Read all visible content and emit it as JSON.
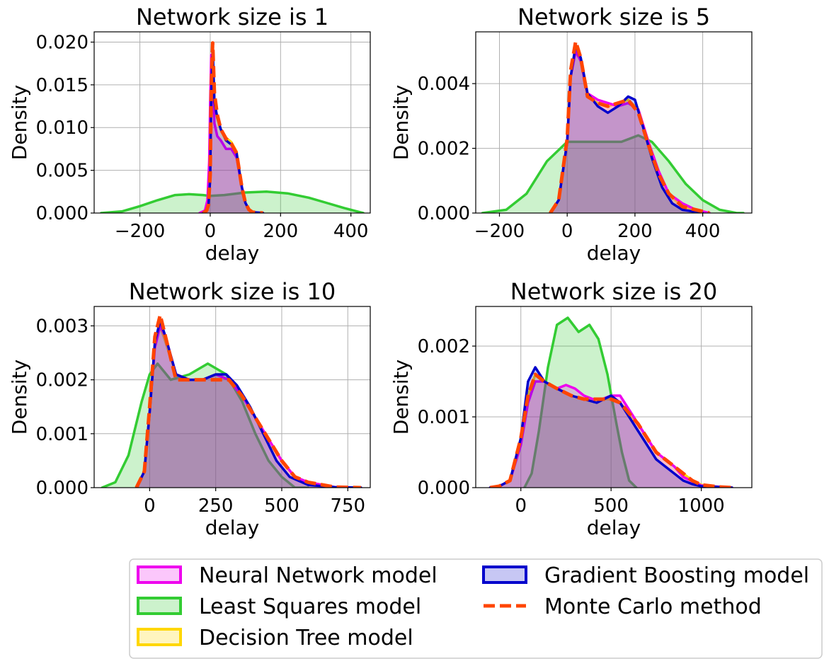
{
  "chart_data": [
    {
      "type": "area",
      "title": "Network size is 1",
      "xlabel": "delay",
      "ylabel": "Density",
      "xlim": [
        -330,
        455
      ],
      "ylim": [
        0,
        0.0212
      ],
      "xticks": [
        -200,
        0,
        200,
        400
      ],
      "yticks": [
        0.0,
        0.005,
        0.01,
        0.015,
        0.02
      ],
      "ytick_labels": [
        "0.000",
        "0.005",
        "0.010",
        "0.015",
        "0.020"
      ],
      "grid": true,
      "series": [
        {
          "name": "Least Squares model",
          "key": "ls",
          "x": [
            -310,
            -250,
            -200,
            -150,
            -100,
            -60,
            -20,
            0,
            40,
            100,
            160,
            220,
            280,
            330,
            380,
            435
          ],
          "y": [
            0,
            0.0002,
            0.0008,
            0.0015,
            0.0021,
            0.0022,
            0.0021,
            0.002,
            0.0021,
            0.0024,
            0.0025,
            0.0023,
            0.0018,
            0.0012,
            0.0006,
            0
          ]
        },
        {
          "name": "Decision Tree model",
          "key": "dt",
          "x": [
            -20,
            -10,
            -5,
            0,
            3,
            7,
            12,
            20,
            30,
            45,
            60,
            75,
            90,
            100,
            110,
            120,
            150
          ],
          "y": [
            0,
            0.0003,
            0.001,
            0.004,
            0.0135,
            0.019,
            0.013,
            0.0111,
            0.0098,
            0.0088,
            0.0083,
            0.0072,
            0.003,
            0.0012,
            0.0004,
            0.0001,
            0
          ]
        },
        {
          "name": "Gradient Boosting model",
          "key": "gb",
          "x": [
            -20,
            -10,
            -5,
            0,
            3,
            7,
            12,
            20,
            30,
            45,
            60,
            75,
            90,
            100,
            110,
            120,
            150
          ],
          "y": [
            0,
            0.0003,
            0.001,
            0.004,
            0.014,
            0.0195,
            0.013,
            0.0112,
            0.0098,
            0.0085,
            0.008,
            0.007,
            0.003,
            0.0012,
            0.0004,
            0.0001,
            0
          ]
        },
        {
          "name": "Neural Network model",
          "key": "nn",
          "x": [
            -30,
            -15,
            -8,
            -3,
            0,
            3,
            7,
            12,
            20,
            30,
            45,
            60,
            75,
            90,
            100,
            110,
            120,
            150
          ],
          "y": [
            0,
            0.0003,
            0.0015,
            0.006,
            0.013,
            0.0185,
            0.016,
            0.0105,
            0.009,
            0.0085,
            0.0075,
            0.0075,
            0.0065,
            0.003,
            0.0012,
            0.0004,
            0.0001,
            0
          ]
        },
        {
          "name": "Monte Carlo method",
          "key": "mc",
          "x": [
            -20,
            -10,
            -5,
            0,
            3,
            7,
            12,
            20,
            30,
            45,
            60,
            75,
            90,
            100,
            110,
            120,
            150
          ],
          "y": [
            0,
            0.0003,
            0.001,
            0.0045,
            0.0145,
            0.0199,
            0.014,
            0.0115,
            0.0098,
            0.0087,
            0.0081,
            0.007,
            0.003,
            0.0012,
            0.0004,
            0.0001,
            0
          ]
        }
      ]
    },
    {
      "type": "area",
      "title": "Network size is 5",
      "xlabel": "delay",
      "ylabel": "Density",
      "xlim": [
        -270,
        545
      ],
      "ylim": [
        0,
        0.0056
      ],
      "xticks": [
        -200,
        0,
        200,
        400
      ],
      "yticks": [
        0.0,
        0.002,
        0.004
      ],
      "ytick_labels": [
        "0.000",
        "0.002",
        "0.004"
      ],
      "grid": true,
      "series": [
        {
          "name": "Least Squares model",
          "key": "ls",
          "x": [
            -250,
            -180,
            -120,
            -60,
            0,
            60,
            100,
            160,
            210,
            250,
            300,
            350,
            400,
            450,
            500,
            520
          ],
          "y": [
            0,
            0.0001,
            0.0006,
            0.0016,
            0.0022,
            0.0022,
            0.0022,
            0.0022,
            0.0024,
            0.0022,
            0.0016,
            0.0009,
            0.0004,
            0.0001,
            0,
            0
          ]
        },
        {
          "name": "Decision Tree model",
          "key": "dt",
          "x": [
            -50,
            -25,
            0,
            10,
            25,
            40,
            60,
            90,
            120,
            150,
            180,
            210,
            240,
            270,
            300,
            340,
            380,
            420
          ],
          "y": [
            0,
            0.0004,
            0.0022,
            0.0042,
            0.0051,
            0.0047,
            0.0036,
            0.0034,
            0.0033,
            0.0034,
            0.0035,
            0.0032,
            0.0022,
            0.0012,
            0.0006,
            0.0002,
            0.0001,
            0
          ]
        },
        {
          "name": "Gradient Boosting model",
          "key": "gb",
          "x": [
            -50,
            -25,
            0,
            10,
            25,
            40,
            60,
            90,
            120,
            150,
            180,
            200,
            220,
            250,
            280,
            310,
            340,
            400
          ],
          "y": [
            0,
            0.0004,
            0.0022,
            0.0042,
            0.0052,
            0.0048,
            0.0037,
            0.0033,
            0.0031,
            0.0033,
            0.0036,
            0.0035,
            0.0028,
            0.0017,
            0.0008,
            0.0003,
            0.0001,
            0
          ]
        },
        {
          "name": "Neural Network model",
          "key": "nn",
          "x": [
            -50,
            -25,
            0,
            10,
            25,
            40,
            60,
            90,
            120,
            150,
            180,
            210,
            240,
            270,
            300,
            340,
            380,
            420
          ],
          "y": [
            0,
            0.0004,
            0.0022,
            0.0042,
            0.005,
            0.0047,
            0.0037,
            0.0035,
            0.0034,
            0.0033,
            0.0034,
            0.0032,
            0.0022,
            0.0013,
            0.0006,
            0.0003,
            0.0001,
            0
          ]
        },
        {
          "name": "Monte Carlo method",
          "key": "mc",
          "x": [
            -50,
            -25,
            0,
            10,
            25,
            40,
            60,
            90,
            120,
            150,
            180,
            210,
            240,
            270,
            300,
            340,
            380,
            420
          ],
          "y": [
            0,
            0.0004,
            0.0023,
            0.0044,
            0.0053,
            0.0048,
            0.0036,
            0.0034,
            0.0033,
            0.0034,
            0.0035,
            0.0031,
            0.0021,
            0.0012,
            0.0006,
            0.0002,
            0.0001,
            0
          ]
        }
      ]
    },
    {
      "type": "area",
      "title": "Network size is 10",
      "xlabel": "delay",
      "ylabel": "Density",
      "xlim": [
        -210,
        835
      ],
      "ylim": [
        0,
        0.00336
      ],
      "xticks": [
        0,
        250,
        500,
        750
      ],
      "yticks": [
        0.0,
        0.001,
        0.002,
        0.003
      ],
      "ytick_labels": [
        "0.000",
        "0.001",
        "0.002",
        "0.003"
      ],
      "grid": true,
      "series": [
        {
          "name": "Least Squares model",
          "key": "ls",
          "x": [
            -180,
            -130,
            -80,
            -30,
            0,
            30,
            80,
            150,
            220,
            290,
            350,
            400,
            450,
            500,
            550,
            600
          ],
          "y": [
            0,
            0.0001,
            0.0006,
            0.0016,
            0.0021,
            0.0023,
            0.002,
            0.0021,
            0.0023,
            0.0021,
            0.0016,
            0.001,
            0.0005,
            0.0002,
            0,
            0
          ]
        },
        {
          "name": "Decision Tree model",
          "key": "dt",
          "x": [
            -50,
            -20,
            0,
            20,
            40,
            60,
            100,
            150,
            200,
            250,
            300,
            350,
            400,
            450,
            500,
            550,
            600,
            700,
            800
          ],
          "y": [
            0,
            0.0003,
            0.0014,
            0.0027,
            0.003,
            0.0027,
            0.0021,
            0.002,
            0.002,
            0.0021,
            0.002,
            0.0017,
            0.0013,
            0.0009,
            0.0005,
            0.0002,
            0.0001,
            1e-05,
            0
          ]
        },
        {
          "name": "Gradient Boosting model",
          "key": "gb",
          "x": [
            -50,
            -20,
            0,
            20,
            40,
            60,
            100,
            150,
            200,
            250,
            290,
            330,
            380,
            430,
            480,
            530,
            600,
            700,
            800
          ],
          "y": [
            0,
            0.0003,
            0.0014,
            0.0027,
            0.0031,
            0.0028,
            0.0021,
            0.002,
            0.002,
            0.0021,
            0.0021,
            0.0019,
            0.0015,
            0.001,
            0.0005,
            0.0002,
            5e-05,
            1e-05,
            0
          ]
        },
        {
          "name": "Neural Network model",
          "key": "nn",
          "x": [
            -50,
            -20,
            0,
            20,
            40,
            60,
            100,
            150,
            200,
            250,
            300,
            350,
            400,
            450,
            500,
            550,
            600,
            700,
            800
          ],
          "y": [
            0,
            0.0003,
            0.0014,
            0.0026,
            0.003,
            0.0028,
            0.0021,
            0.002,
            0.002,
            0.0021,
            0.002,
            0.0017,
            0.0013,
            0.0009,
            0.0005,
            0.0002,
            0.0001,
            1e-05,
            0
          ]
        },
        {
          "name": "Monte Carlo method",
          "key": "mc",
          "x": [
            -50,
            -20,
            0,
            20,
            40,
            60,
            100,
            150,
            200,
            250,
            300,
            350,
            400,
            450,
            500,
            550,
            600,
            700,
            800
          ],
          "y": [
            0,
            0.0003,
            0.0015,
            0.0028,
            0.0032,
            0.0028,
            0.002,
            0.002,
            0.002,
            0.002,
            0.002,
            0.0017,
            0.0013,
            0.0009,
            0.0005,
            0.0002,
            0.0001,
            1e-05,
            0
          ]
        }
      ]
    },
    {
      "type": "area",
      "title": "Network size is 20",
      "xlabel": "delay",
      "ylabel": "Density",
      "xlim": [
        -250,
        1280
      ],
      "ylim": [
        0,
        0.00256
      ],
      "xticks": [
        0,
        500,
        1000
      ],
      "yticks": [
        0.0,
        0.001,
        0.002
      ],
      "ytick_labels": [
        "0.000",
        "0.001",
        "0.002"
      ],
      "grid": true,
      "series": [
        {
          "name": "Least Squares model",
          "key": "ls",
          "x": [
            20,
            60,
            100,
            150,
            200,
            260,
            320,
            380,
            430,
            480,
            530,
            560,
            600,
            640
          ],
          "y": [
            0,
            0.0002,
            0.0008,
            0.0017,
            0.0023,
            0.0024,
            0.0022,
            0.0023,
            0.0021,
            0.0016,
            0.0009,
            0.0005,
            0.0001,
            0
          ]
        },
        {
          "name": "Decision Tree model",
          "key": "dt",
          "x": [
            -170,
            -120,
            -60,
            0,
            40,
            80,
            130,
            200,
            280,
            350,
            420,
            500,
            550,
            600,
            650,
            700,
            750,
            800,
            850,
            900,
            950,
            1000,
            1100,
            1170
          ],
          "y": [
            0,
            2e-05,
            0.0001,
            0.0007,
            0.0013,
            0.0016,
            0.0015,
            0.0014,
            0.0013,
            0.00125,
            0.00125,
            0.00125,
            0.0012,
            0.00105,
            0.0009,
            0.0007,
            0.0005,
            0.0004,
            0.0003,
            0.0002,
            0.0001,
            4e-05,
            1e-05,
            0
          ]
        },
        {
          "name": "Gradient Boosting model",
          "key": "gb",
          "x": [
            -170,
            -120,
            -60,
            0,
            40,
            80,
            130,
            200,
            280,
            350,
            420,
            500,
            550,
            600,
            650,
            700,
            750,
            800,
            850,
            900,
            950,
            1000,
            1100,
            1170
          ],
          "y": [
            0,
            2e-05,
            0.0001,
            0.0007,
            0.0015,
            0.0017,
            0.0015,
            0.0014,
            0.0013,
            0.00125,
            0.0012,
            0.0013,
            0.0012,
            0.001,
            0.0008,
            0.0006,
            0.0004,
            0.0003,
            0.0002,
            0.0001,
            5e-05,
            2e-05,
            1e-05,
            0
          ]
        },
        {
          "name": "Neural Network model",
          "key": "nn",
          "x": [
            -170,
            -120,
            -60,
            0,
            40,
            80,
            130,
            200,
            250,
            300,
            350,
            400,
            450,
            500,
            550,
            600,
            650,
            700,
            750,
            800,
            850,
            900,
            1000,
            1170
          ],
          "y": [
            0,
            2e-05,
            0.0001,
            0.0006,
            0.0012,
            0.0015,
            0.0015,
            0.0014,
            0.00145,
            0.0014,
            0.0013,
            0.00125,
            0.00125,
            0.0013,
            0.0013,
            0.0011,
            0.0009,
            0.0007,
            0.0005,
            0.0004,
            0.0003,
            0.00015,
            3e-05,
            0
          ]
        },
        {
          "name": "Monte Carlo method",
          "key": "mc",
          "x": [
            -170,
            -120,
            -60,
            0,
            40,
            80,
            130,
            200,
            280,
            350,
            420,
            500,
            550,
            600,
            650,
            700,
            750,
            800,
            850,
            900,
            950,
            1000,
            1100,
            1170
          ],
          "y": [
            0,
            2e-05,
            0.0001,
            0.0007,
            0.0013,
            0.0016,
            0.0015,
            0.0014,
            0.0013,
            0.00125,
            0.00125,
            0.00125,
            0.0012,
            0.00105,
            0.0009,
            0.0007,
            0.0005,
            0.0004,
            0.0003,
            0.0002,
            0.0001,
            4e-05,
            1e-05,
            0
          ]
        }
      ]
    }
  ],
  "legend": {
    "placement": "bottom",
    "items": [
      {
        "key": "nn",
        "label": "Neural Network model",
        "kind": "patch"
      },
      {
        "key": "ls",
        "label": "Least Squares model",
        "kind": "patch"
      },
      {
        "key": "dt",
        "label": "Decision Tree model",
        "kind": "patch"
      },
      {
        "key": "gb",
        "label": "Gradient Boosting model",
        "kind": "patch"
      },
      {
        "key": "mc",
        "label": "Monte Carlo method",
        "kind": "dashed-line"
      }
    ]
  },
  "colors": {
    "nn": {
      "edge": "#ee00ee",
      "fill": "#ee00ee",
      "fill_opacity": 0.22
    },
    "ls": {
      "edge": "#33cc33",
      "fill": "#33cc33",
      "fill_opacity": 0.25
    },
    "dt": {
      "edge": "#ffd700",
      "fill": "#ffd700",
      "fill_opacity": 0.25
    },
    "gb": {
      "edge": "#0000cc",
      "fill": "#0000cc",
      "fill_opacity": 0.22
    },
    "mc": {
      "edge": "#ff4500",
      "fill": "none",
      "fill_opacity": 0
    }
  }
}
